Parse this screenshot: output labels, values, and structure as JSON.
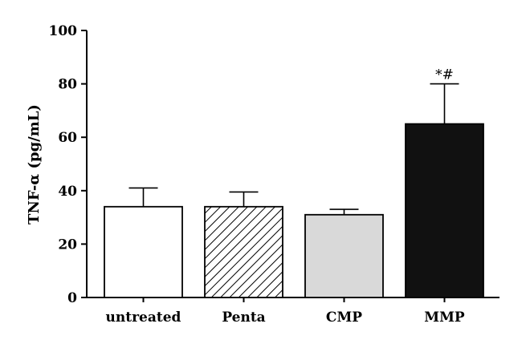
{
  "chart_data": {
    "type": "bar",
    "title": "",
    "xlabel": "",
    "ylabel": "TNF-α (pg/mL)",
    "ylim": [
      0,
      100
    ],
    "yticks": [
      0,
      20,
      40,
      60,
      80,
      100
    ],
    "grid": false,
    "categories": [
      "untreated",
      "Penta",
      "CMP",
      "MMP"
    ],
    "values": [
      34,
      34,
      31,
      65
    ],
    "errors": [
      7,
      5.5,
      2,
      15
    ],
    "fills": [
      "white",
      "hatched",
      "light-gray",
      "black"
    ],
    "colors": {
      "light-gray": "#d9d9d9",
      "black": "#111111",
      "white": "#ffffff"
    },
    "annotations": [
      {
        "category": "MMP",
        "text": "*#"
      }
    ]
  }
}
